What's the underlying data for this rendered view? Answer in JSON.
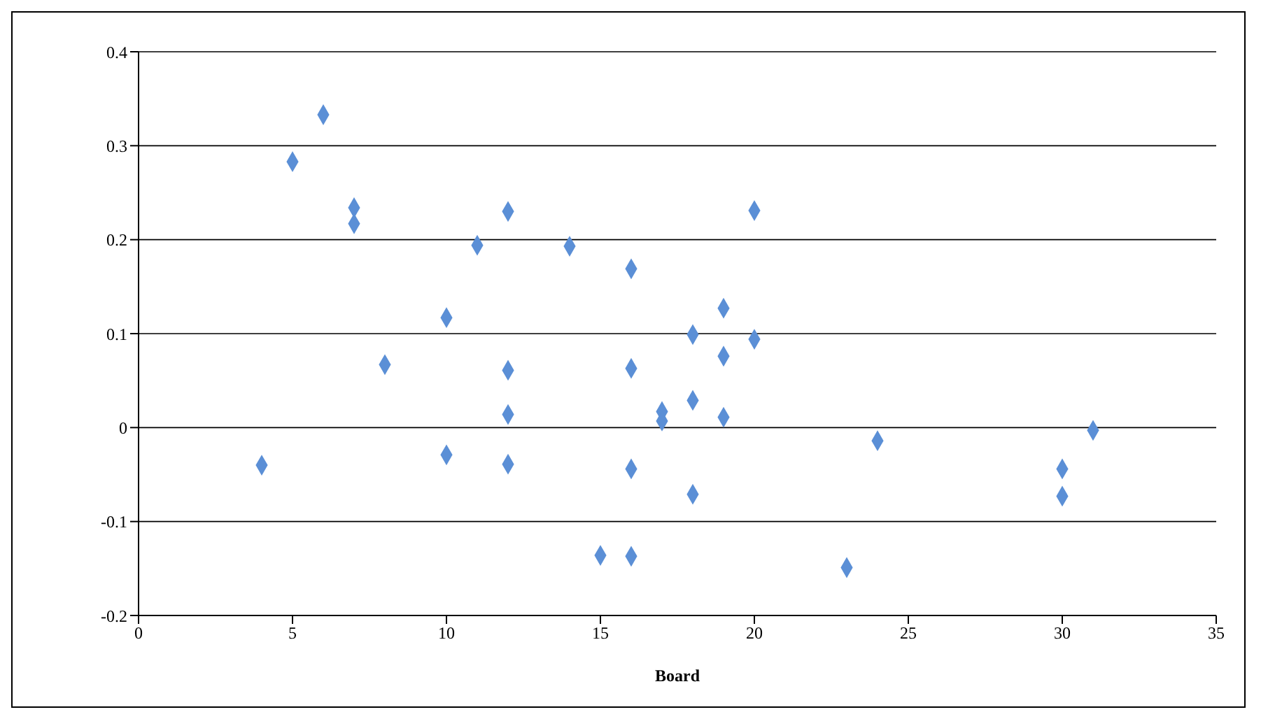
{
  "chart_data": {
    "type": "scatter",
    "xlabel": "Board",
    "x": [
      4,
      5,
      6,
      7,
      7,
      8,
      10,
      10,
      11,
      12,
      12,
      12,
      12,
      14,
      15,
      16,
      16,
      16,
      16,
      17,
      17,
      18,
      18,
      18,
      19,
      19,
      19,
      20,
      20,
      23,
      24,
      30,
      30,
      31
    ],
    "values": [
      -0.04,
      0.283,
      0.333,
      0.234,
      0.217,
      0.067,
      0.117,
      -0.029,
      0.194,
      0.23,
      0.061,
      0.014,
      -0.039,
      0.193,
      -0.136,
      0.169,
      0.063,
      -0.044,
      -0.137,
      0.017,
      0.007,
      0.099,
      0.029,
      -0.071,
      0.127,
      0.076,
      0.011,
      0.231,
      0.094,
      -0.149,
      -0.014,
      -0.044,
      -0.073,
      -0.003
    ],
    "color": "#5b8fd6",
    "xlim": [
      0,
      35
    ],
    "xticks": [
      0,
      5,
      10,
      15,
      20,
      25,
      30,
      35
    ],
    "ylim": [
      -0.2,
      0.4
    ],
    "yticks": [
      -0.2,
      -0.1,
      0,
      0.1,
      0.2,
      0.3,
      0.4
    ],
    "grid": "y",
    "marker": "diamond",
    "legend": false
  }
}
